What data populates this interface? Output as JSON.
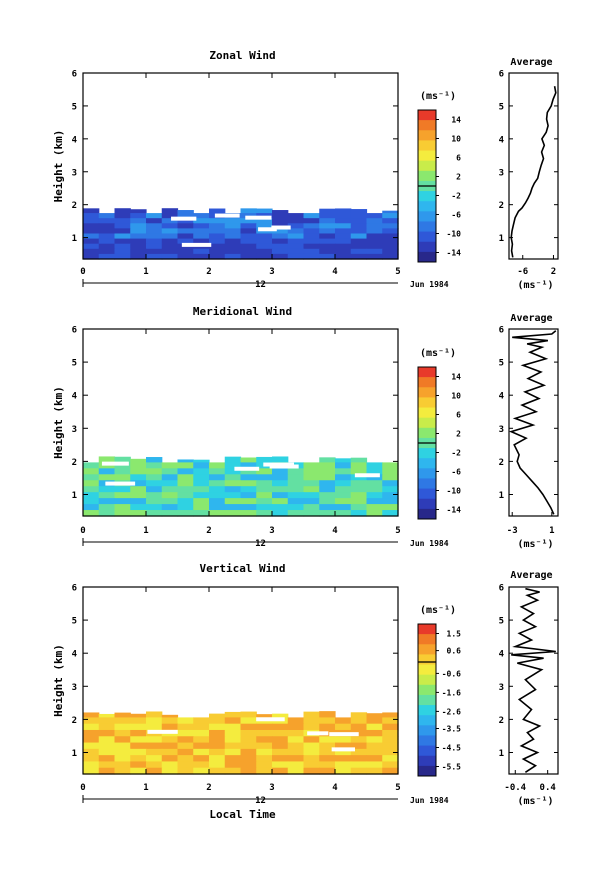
{
  "chart_data": [
    {
      "type": "heatmap",
      "title": "Zonal Wind",
      "ylabel": "Height (km)",
      "xlim": [
        0,
        5
      ],
      "ylim": [
        0.35,
        6
      ],
      "x_ticks": [
        "0",
        "1",
        "2",
        "3",
        "4",
        "5"
      ],
      "y_ticks": [
        "1",
        "2",
        "3",
        "4",
        "5",
        "6"
      ],
      "date_axis": {
        "tick_label": "12",
        "date_label": "Jun 1984"
      },
      "colorbar": {
        "unit": "(ms⁻¹)",
        "ticks": [
          "14",
          "10",
          "6",
          "2",
          "-2",
          "-6",
          "-10",
          "-14"
        ],
        "colors": [
          "#e83a2a",
          "#f07a26",
          "#f6a22c",
          "#f8cc33",
          "#f4ec3e",
          "#c9ec4a",
          "#8be86e",
          "#63e0a2",
          "#2fd2e2",
          "#2fb6ee",
          "#2f98ec",
          "#2f78e4",
          "#2f58d8",
          "#2e3cb8",
          "#28288a"
        ],
        "range": [
          -16,
          16
        ]
      },
      "heat_range": {
        "x": [
          0,
          5
        ],
        "y": [
          0.35,
          1.9
        ]
      },
      "heat_colors": [
        "#2f78e4",
        "#2f58d8",
        "#2e3cb8",
        "#2f98ec"
      ],
      "average": {
        "title": "Average",
        "xlabel": "(ms⁻¹)",
        "x_ticks": [
          "-6",
          "2"
        ],
        "x": [
          -8.6,
          -8.9,
          -8.7,
          -9.0,
          -8.8,
          -8.4,
          -8.0,
          -7.1,
          -6.2,
          -5.3,
          -4.6,
          -4.0,
          -3.6,
          -3.0,
          -2.1,
          -1.7,
          -1.2,
          -0.6,
          -1.1,
          -0.4,
          -1.0,
          0.1,
          0.6,
          0.2,
          0.4,
          1.4,
          1.9,
          2.6,
          2.3
        ],
        "y": [
          0.4,
          0.6,
          0.8,
          1.0,
          1.2,
          1.4,
          1.6,
          1.8,
          1.9,
          2.05,
          2.2,
          2.35,
          2.5,
          2.65,
          2.8,
          3.0,
          3.2,
          3.4,
          3.6,
          3.8,
          4.0,
          4.2,
          4.4,
          4.6,
          4.8,
          5.0,
          5.2,
          5.4,
          5.6
        ]
      }
    },
    {
      "type": "heatmap",
      "title": "Meridional Wind",
      "ylabel": "Height (km)",
      "xlim": [
        0,
        5
      ],
      "ylim": [
        0.35,
        6
      ],
      "x_ticks": [
        "0",
        "1",
        "2",
        "3",
        "4",
        "5"
      ],
      "y_ticks": [
        "1",
        "2",
        "3",
        "4",
        "5",
        "6"
      ],
      "date_axis": {
        "tick_label": "12",
        "date_label": "Jun 1984"
      },
      "colorbar": {
        "unit": "(ms⁻¹)",
        "ticks": [
          "14",
          "10",
          "6",
          "2",
          "-2",
          "-6",
          "-10",
          "-14"
        ],
        "colors": [
          "#e83a2a",
          "#f07a26",
          "#f6a22c",
          "#f8cc33",
          "#f4ec3e",
          "#c9ec4a",
          "#8be86e",
          "#63e0a2",
          "#2fd2e2",
          "#2fb6ee",
          "#2f98ec",
          "#2f78e4",
          "#2f58d8",
          "#2e3cb8",
          "#28288a"
        ],
        "range": [
          -16,
          16
        ]
      },
      "heat_range": {
        "x": [
          0,
          5
        ],
        "y": [
          0.35,
          2.15
        ]
      },
      "heat_colors": [
        "#63e0a2",
        "#8be86e",
        "#2fd2e2",
        "#2fb6ee"
      ],
      "average": {
        "title": "Average",
        "xlabel": "(ms⁻¹)",
        "x_ticks": [
          "-3",
          "1"
        ],
        "x": [
          1.2,
          0.9,
          0.5,
          0.1,
          -0.4,
          -1.0,
          -1.6,
          -2.2,
          -2.5,
          -2.3,
          -2.8,
          -1.6,
          -3.1,
          -0.9,
          -2.7,
          -0.6,
          -2.0,
          -0.3,
          -1.7,
          0.2,
          -1.4,
          -0.1,
          -1.9,
          0.4,
          -1.2,
          0.0,
          -1.5,
          0.6,
          -3.0,
          1.0,
          1.4
        ],
        "y": [
          0.4,
          0.6,
          0.8,
          1.0,
          1.2,
          1.4,
          1.6,
          1.8,
          2.0,
          2.2,
          2.5,
          2.7,
          2.9,
          3.1,
          3.3,
          3.5,
          3.7,
          3.9,
          4.1,
          4.3,
          4.5,
          4.7,
          4.9,
          5.1,
          5.3,
          5.45,
          5.55,
          5.65,
          5.75,
          5.85,
          5.95
        ]
      }
    },
    {
      "type": "heatmap",
      "title": "Vertical Wind",
      "ylabel": "Height (km)",
      "xlabel": "Local Time",
      "xlim": [
        0,
        5
      ],
      "ylim": [
        0.35,
        6
      ],
      "x_ticks": [
        "0",
        "1",
        "2",
        "3",
        "4",
        "5"
      ],
      "y_ticks": [
        "1",
        "2",
        "3",
        "4",
        "5",
        "6"
      ],
      "date_axis": {
        "tick_label": "12",
        "date_label": "Jun 1984"
      },
      "colorbar": {
        "unit": "(ms⁻¹)",
        "ticks": [
          "1.5",
          "0.6",
          "-0.6",
          "-1.6",
          "-2.6",
          "-3.5",
          "-4.5",
          "-5.5"
        ],
        "colors": [
          "#e83a2a",
          "#f07a26",
          "#f6a22c",
          "#f8cc33",
          "#f4ec3e",
          "#c9ec4a",
          "#8be86e",
          "#63e0a2",
          "#2fd2e2",
          "#2fb6ee",
          "#2f98ec",
          "#2f78e4",
          "#2f58d8",
          "#2e3cb8",
          "#28288a"
        ],
        "range": [
          -6,
          2
        ]
      },
      "heat_range": {
        "x": [
          0,
          5
        ],
        "y": [
          0.35,
          2.25
        ]
      },
      "heat_colors": [
        "#f8cc33",
        "#f4ec3e",
        "#f6a22c"
      ],
      "average": {
        "title": "Average",
        "xlabel": "(ms⁻¹)",
        "x_ticks": [
          "-0.4",
          "0.4"
        ],
        "x": [
          -0.15,
          0.1,
          -0.2,
          0.15,
          -0.25,
          0.05,
          -0.1,
          0.2,
          -0.2,
          0.0,
          -0.3,
          0.1,
          -0.15,
          0.25,
          -0.35,
          0.3,
          -0.5,
          0.6,
          -0.4,
          0.0,
          -0.3,
          0.1,
          -0.2,
          0.05,
          -0.25,
          0.15,
          -0.1,
          0.2,
          -0.15
        ],
        "y": [
          0.4,
          0.6,
          0.8,
          1.0,
          1.2,
          1.4,
          1.6,
          1.8,
          2.0,
          2.3,
          2.6,
          2.9,
          3.2,
          3.5,
          3.7,
          3.85,
          3.95,
          4.05,
          4.2,
          4.4,
          4.6,
          4.8,
          5.0,
          5.2,
          5.4,
          5.6,
          5.75,
          5.85,
          5.95
        ]
      }
    }
  ]
}
